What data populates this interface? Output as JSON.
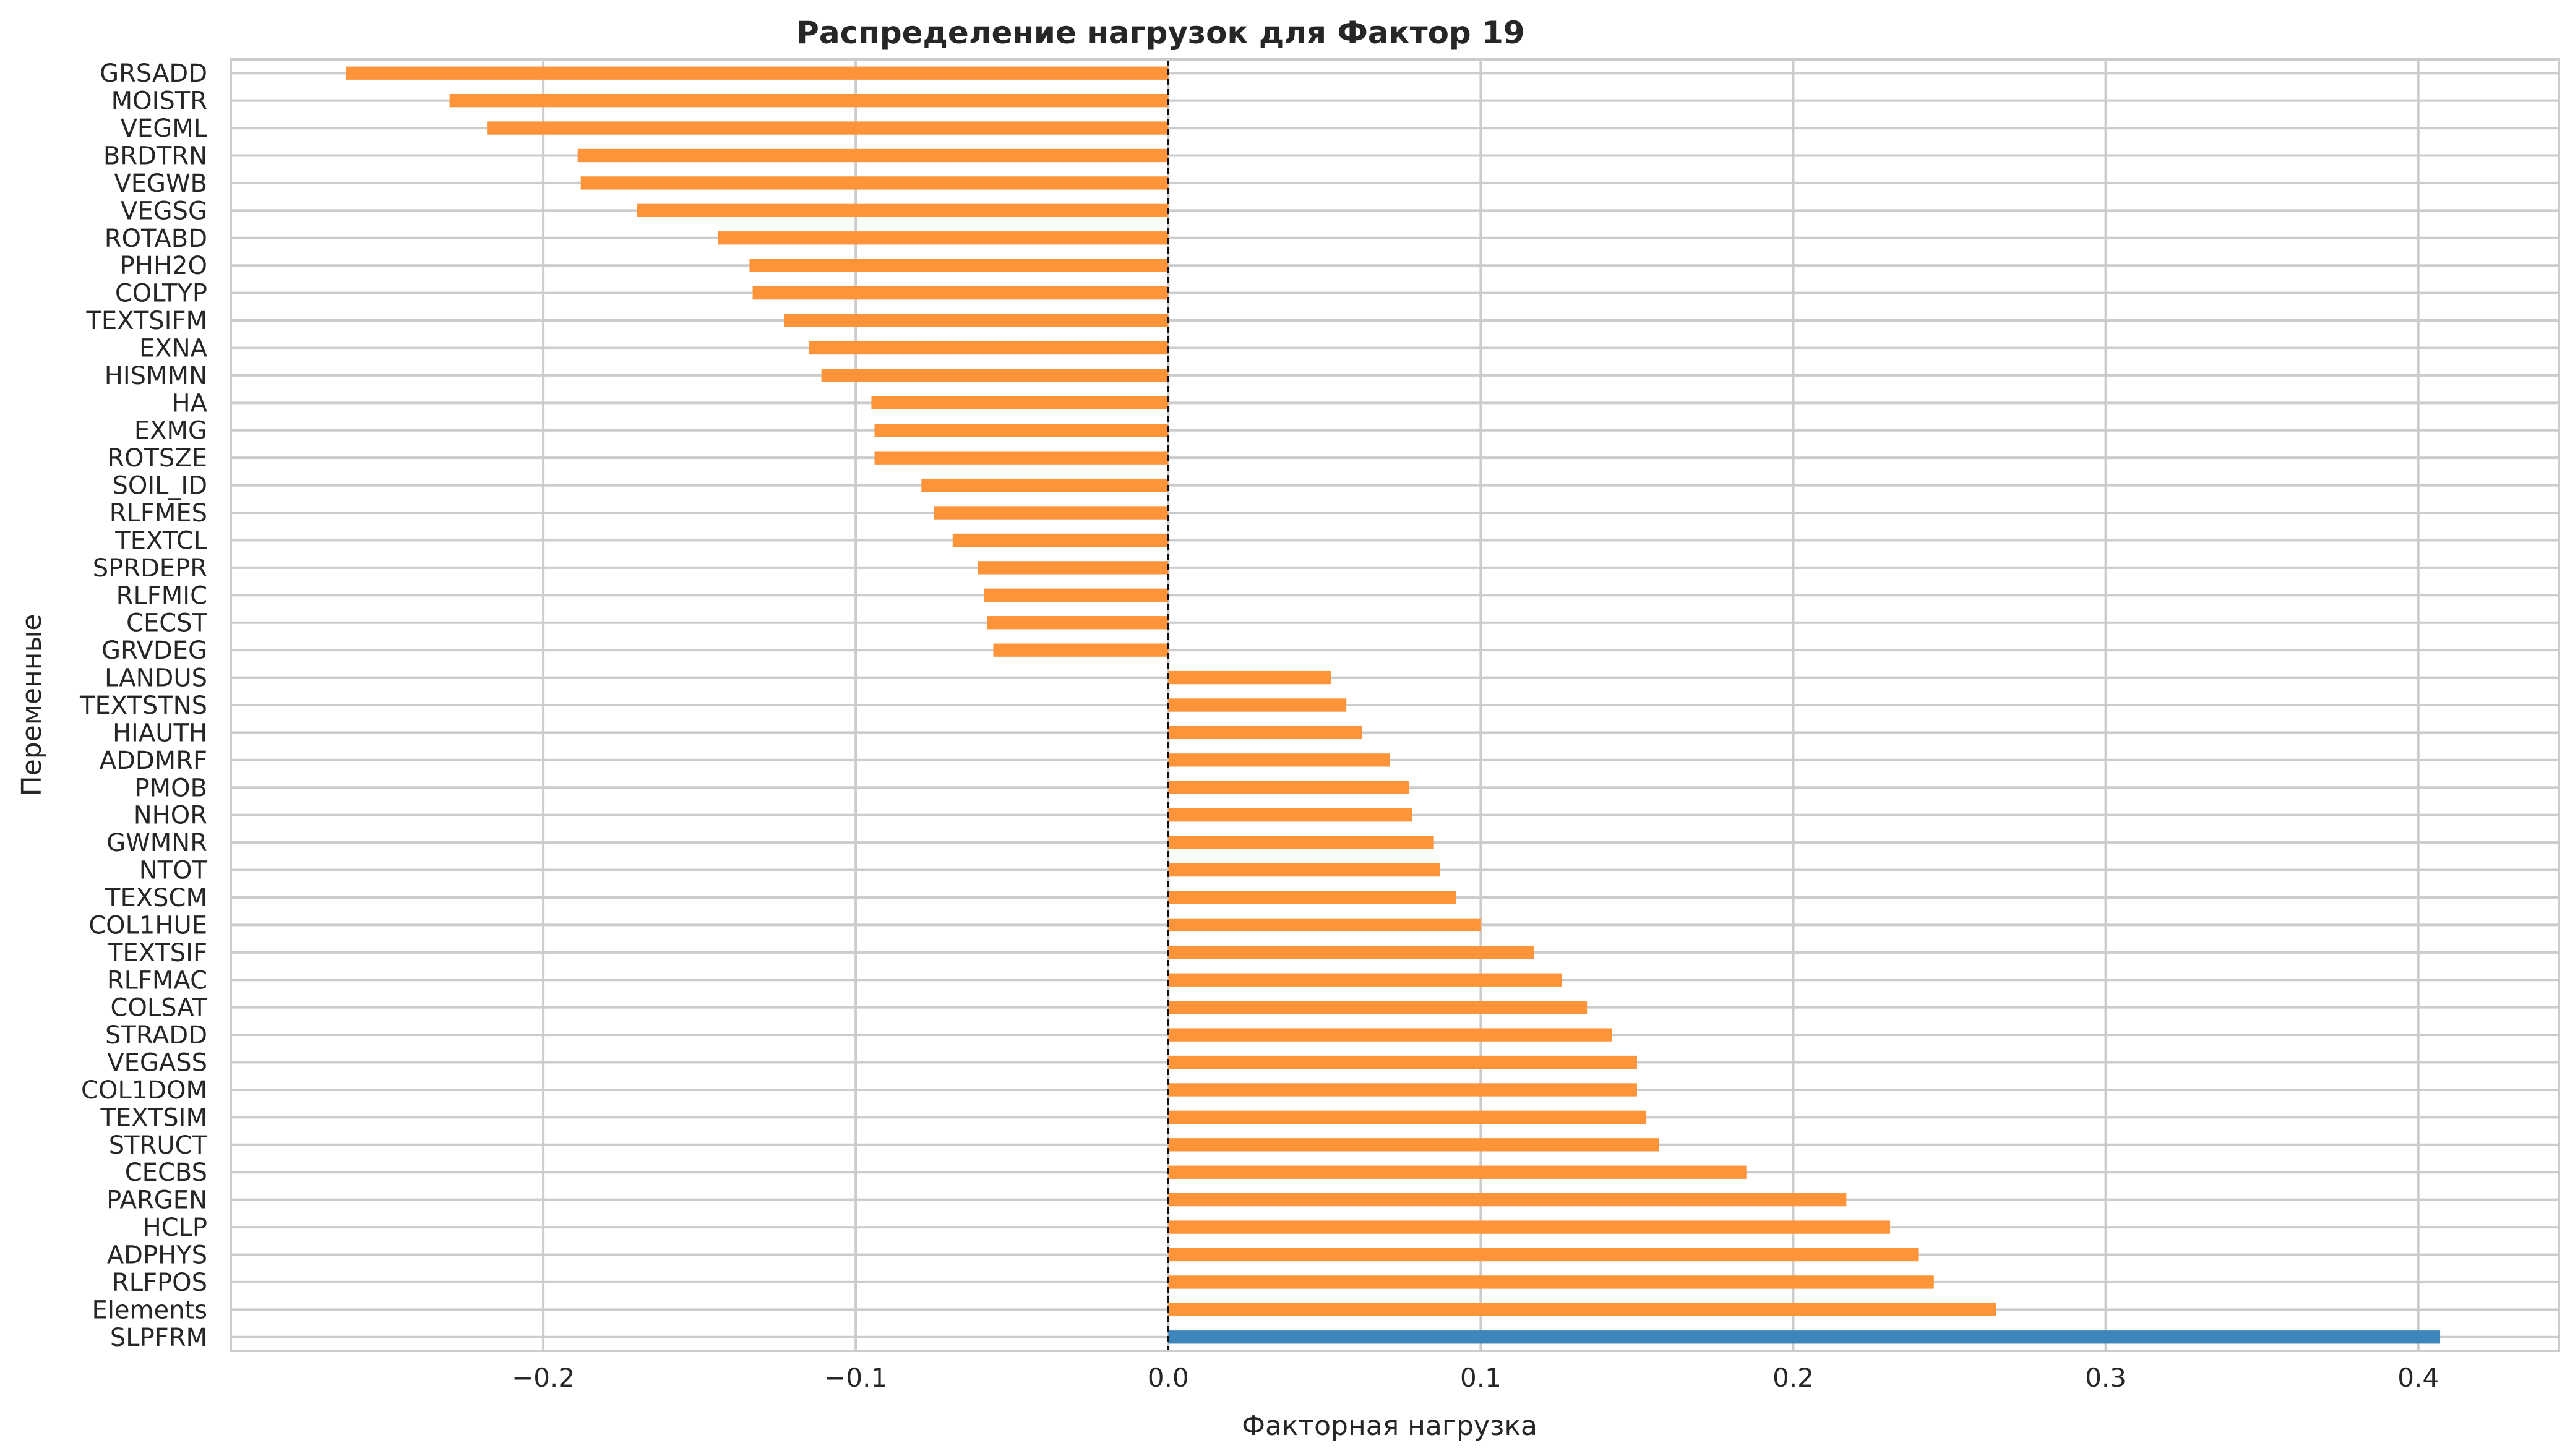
{
  "chart_data": {
    "type": "bar",
    "orientation": "horizontal",
    "title": "Распределение нагрузок для Фактор 19",
    "xlabel": "Факторная нагрузка",
    "ylabel": "Переменные",
    "xlim": [
      -0.3,
      0.445
    ],
    "xticks": [
      -0.2,
      -0.1,
      0.0,
      0.1,
      0.2,
      0.3,
      0.4
    ],
    "xtick_labels": [
      "−0.2",
      "−0.1",
      "0.0",
      "0.1",
      "0.2",
      "0.3",
      "0.4"
    ],
    "grid": true,
    "zero_line": "dashed",
    "colors": {
      "default": "#fd9439",
      "highlight": "#3d85bb"
    },
    "categories": [
      "GRSADD",
      "MOISTR",
      "VEGML",
      "BRDTRN",
      "VEGWB",
      "VEGSG",
      "ROTABD",
      "PHH2O",
      "COLTYP",
      "TEXTSIFM",
      "EXNA",
      "HISMMN",
      "HA",
      "EXMG",
      "ROTSZE",
      "SOIL_ID",
      "RLFMES",
      "TEXTCL",
      "SPRDEPR",
      "RLFMIC",
      "CECST",
      "GRVDEG",
      "LANDUS",
      "TEXTSTNS",
      "HIAUTH",
      "ADDMRF",
      "PMOB",
      "NHOR",
      "GWMNR",
      "NTOT",
      "TEXSCM",
      "COL1HUE",
      "TEXTSIF",
      "RLFMAC",
      "COLSAT",
      "STRADD",
      "VEGASS",
      "COL1DOM",
      "TEXTSIM",
      "STRUCT",
      "CECBS",
      "PARGEN",
      "HCLP",
      "ADPHYS",
      "RLFPOS",
      "Elements",
      "SLPFRM"
    ],
    "values": [
      -0.263,
      -0.23,
      -0.218,
      -0.189,
      -0.188,
      -0.17,
      -0.144,
      -0.134,
      -0.133,
      -0.123,
      -0.115,
      -0.111,
      -0.095,
      -0.094,
      -0.094,
      -0.079,
      -0.075,
      -0.069,
      -0.061,
      -0.059,
      -0.058,
      -0.056,
      0.052,
      0.057,
      0.062,
      0.071,
      0.077,
      0.078,
      0.085,
      0.087,
      0.092,
      0.1,
      0.117,
      0.126,
      0.134,
      0.142,
      0.15,
      0.15,
      0.153,
      0.157,
      0.185,
      0.217,
      0.231,
      0.24,
      0.245,
      0.265,
      0.407
    ],
    "highlight_index": 46
  }
}
